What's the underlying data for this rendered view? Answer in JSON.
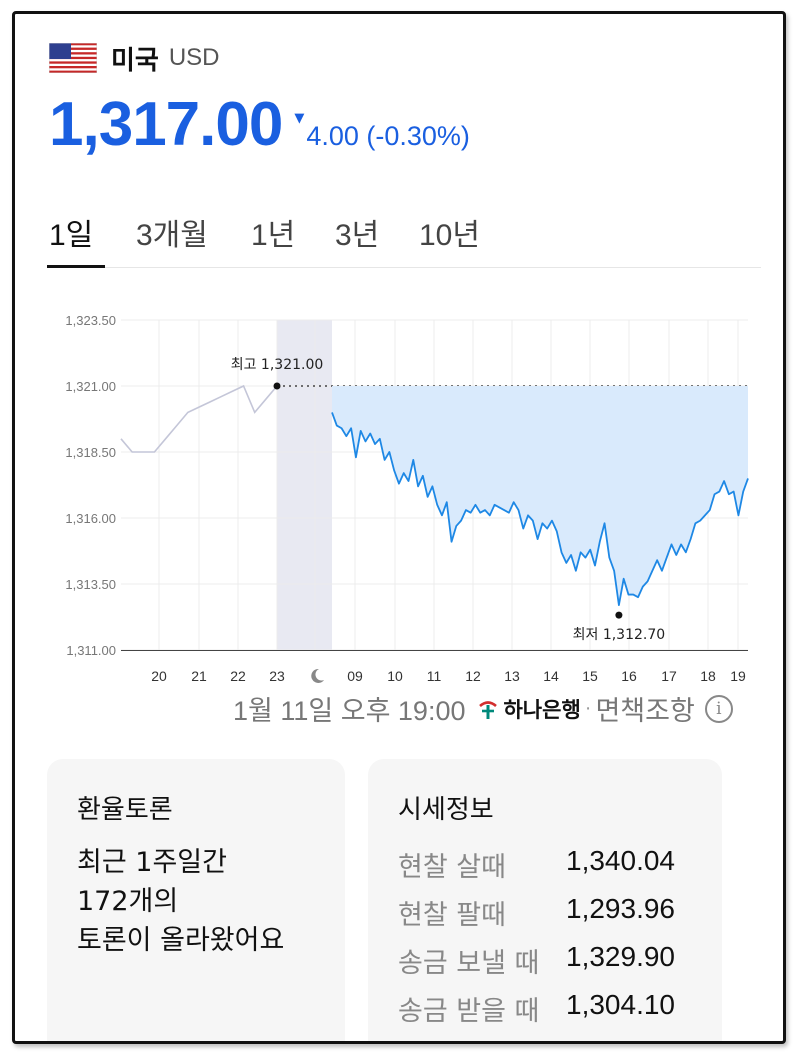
{
  "header": {
    "country": "미국",
    "currency_code": "USD",
    "flag_icon": "us-flag-icon"
  },
  "price": {
    "value": "1,317.00",
    "change": "4.00 (-0.30%)",
    "direction_icon": "triangle-down-icon",
    "color": "#1a5fe0"
  },
  "tabs": [
    {
      "label": "1일",
      "active": true
    },
    {
      "label": "3개월",
      "active": false
    },
    {
      "label": "1년",
      "active": false
    },
    {
      "label": "3년",
      "active": false
    },
    {
      "label": "10년",
      "active": false
    }
  ],
  "chart_data": {
    "type": "line",
    "ylim": [
      1311.0,
      1323.5
    ],
    "yticks": [
      "1,323.50",
      "1,321.00",
      "1,318.50",
      "1,316.00",
      "1,313.50",
      "1,311.00"
    ],
    "xticks": [
      "20",
      "21",
      "22",
      "23",
      "moon-icon",
      "09",
      "10",
      "11",
      "12",
      "13",
      "14",
      "15",
      "16",
      "17",
      "18",
      "19"
    ],
    "grid": true,
    "high_label": "최고 1,321.00",
    "low_label": "최저 1,312.70",
    "high": 1321.0,
    "low": 1312.7,
    "series": [
      {
        "segment": "previous-session",
        "color": "#c4c6d8",
        "values": [
          1319.0,
          1318.5,
          1318.5,
          1318.5,
          1319.0,
          1319.5,
          1320.0,
          1320.2,
          1320.4,
          1320.6,
          1320.8,
          1321.0,
          1320.0,
          1320.5,
          1321.0
        ]
      },
      {
        "segment": "current-session",
        "color": "#1e88e5",
        "fill": "#d9eafc",
        "values": [
          1320.0,
          1319.5,
          1319.4,
          1319.1,
          1319.4,
          1318.3,
          1319.3,
          1318.9,
          1319.2,
          1318.8,
          1319.0,
          1318.2,
          1318.5,
          1317.8,
          1317.3,
          1317.7,
          1317.4,
          1318.2,
          1317.2,
          1317.6,
          1316.8,
          1317.2,
          1316.5,
          1316.1,
          1316.6,
          1315.1,
          1315.7,
          1315.9,
          1316.3,
          1316.2,
          1316.5,
          1316.2,
          1316.3,
          1316.1,
          1316.5,
          1316.4,
          1316.3,
          1316.2,
          1316.6,
          1316.3,
          1315.6,
          1316.1,
          1315.9,
          1315.2,
          1315.8,
          1315.6,
          1315.9,
          1315.5,
          1314.7,
          1314.3,
          1314.6,
          1314.0,
          1314.7,
          1314.5,
          1314.8,
          1314.2,
          1315.1,
          1315.8,
          1314.5,
          1314.0,
          1312.7,
          1313.7,
          1313.1,
          1313.1,
          1313.0,
          1313.4,
          1313.6,
          1314.0,
          1314.4,
          1314.0,
          1314.5,
          1315.0,
          1314.6,
          1315.0,
          1314.7,
          1315.2,
          1315.8,
          1315.9,
          1316.1,
          1316.3,
          1316.9,
          1317.0,
          1317.4,
          1316.9,
          1317.0,
          1316.1,
          1317.0,
          1317.5
        ]
      }
    ]
  },
  "source": {
    "timestamp": "1월 11일 오후 19:00",
    "bank": "하나은행",
    "separator": "·",
    "disclaimer": "면책조항",
    "info_icon": "info-icon"
  },
  "discussion": {
    "title": "환율토론",
    "line1": "최근 1주일간",
    "line2": "172개의",
    "line3": "토론이 올라왔어요"
  },
  "rates": {
    "title": "시세정보",
    "rows": [
      {
        "label": "현찰 살때",
        "value": "1,340.04"
      },
      {
        "label": "현찰 팔때",
        "value": "1,293.96"
      },
      {
        "label": "송금 보낼 때",
        "value": "1,329.90"
      },
      {
        "label": "송금 받을 때",
        "value": "1,304.10"
      }
    ]
  }
}
